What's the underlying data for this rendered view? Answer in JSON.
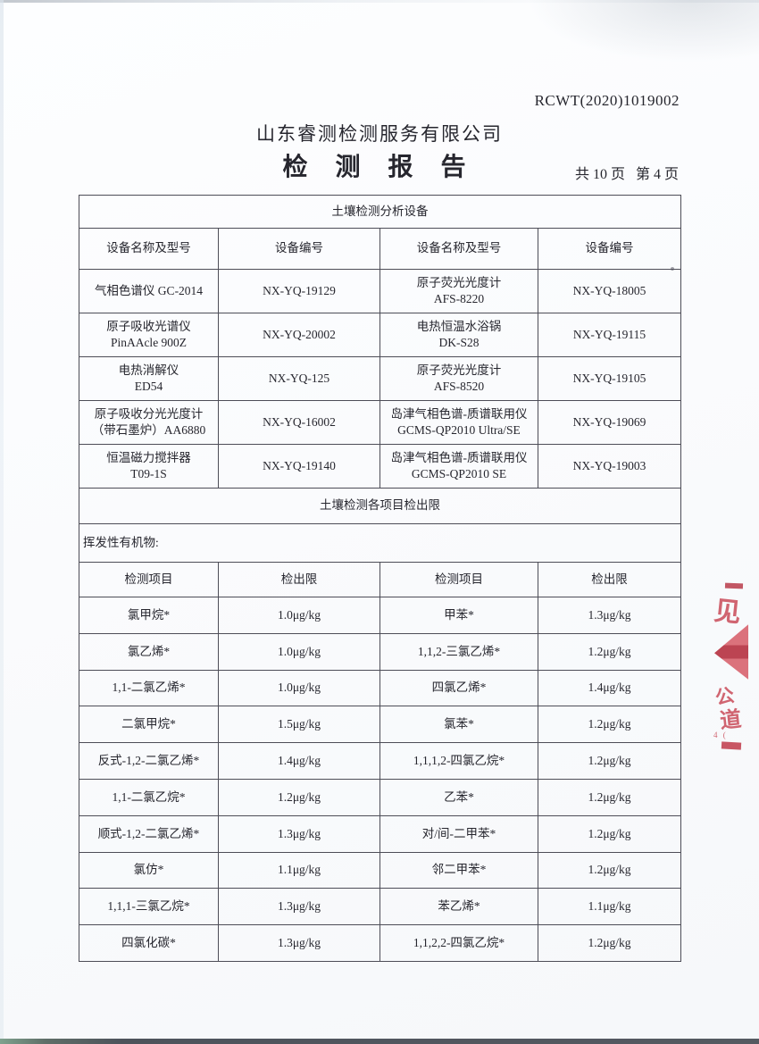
{
  "page": {
    "report_no": "RCWT(2020)1019002",
    "company": "山东睿测检测服务有限公司",
    "title": "检 测 报 告",
    "pagination": "共 10 页   第 4 页"
  },
  "equipment_table": {
    "title": "土壤检测分析设备",
    "headers": [
      "设备名称及型号",
      "设备编号",
      "设备名称及型号",
      "设备编号"
    ],
    "rows": [
      [
        "气相色谱仪 GC-2014",
        "NX-YQ-19129",
        "原子荧光光度计\nAFS-8220",
        "NX-YQ-18005"
      ],
      [
        "原子吸收光谱仪\nPinAAcle 900Z",
        "NX-YQ-20002",
        "电热恒温水浴锅\nDK-S28",
        "NX-YQ-19115"
      ],
      [
        "电热消解仪\nED54",
        "NX-YQ-125",
        "原子荧光光度计\nAFS-8520",
        "NX-YQ-19105"
      ],
      [
        "原子吸收分光光度计\n（带石墨炉）AA6880",
        "NX-YQ-16002",
        "岛津气相色谱-质谱联用仪\nGCMS-QP2010 Ultra/SE",
        "NX-YQ-19069"
      ],
      [
        "恒温磁力搅拌器\nT09-1S",
        "NX-YQ-19140",
        "岛津气相色谱-质谱联用仪\nGCMS-QP2010 SE",
        "NX-YQ-19003"
      ]
    ]
  },
  "limits_section": {
    "title": "土壤检测各项目检出限",
    "category_label": "挥发性有机物:",
    "headers": [
      "检测项目",
      "检出限",
      "检测项目",
      "检出限"
    ],
    "rows": [
      [
        "氯甲烷*",
        "1.0μg/kg",
        "甲苯*",
        "1.3μg/kg"
      ],
      [
        "氯乙烯*",
        "1.0μg/kg",
        "1,1,2-三氯乙烯*",
        "1.2μg/kg"
      ],
      [
        "1,1-二氯乙烯*",
        "1.0μg/kg",
        "四氯乙烯*",
        "1.4μg/kg"
      ],
      [
        "二氯甲烷*",
        "1.5μg/kg",
        "氯苯*",
        "1.2μg/kg"
      ],
      [
        "反式-1,2-二氯乙烯*",
        "1.4μg/kg",
        "1,1,1,2-四氯乙烷*",
        "1.2μg/kg"
      ],
      [
        "1,1-二氯乙烷*",
        "1.2μg/kg",
        "乙苯*",
        "1.2μg/kg"
      ],
      [
        "顺式-1,2-二氯乙烯*",
        "1.3μg/kg",
        "对/间-二甲苯*",
        "1.2μg/kg"
      ],
      [
        "氯仿*",
        "1.1μg/kg",
        "邻二甲苯*",
        "1.2μg/kg"
      ],
      [
        "1,1,1-三氯乙烷*",
        "1.3μg/kg",
        "苯乙烯*",
        "1.1μg/kg"
      ],
      [
        "四氯化碳*",
        "1.3μg/kg",
        "1,1,2,2-四氯乙烷*",
        "1.2μg/kg"
      ]
    ]
  },
  "stamp": {
    "color": "#c7414f",
    "fragments": {
      "char1": "见",
      "char2": "公",
      "char3": "道",
      "small_marks": "4 ("
    }
  }
}
